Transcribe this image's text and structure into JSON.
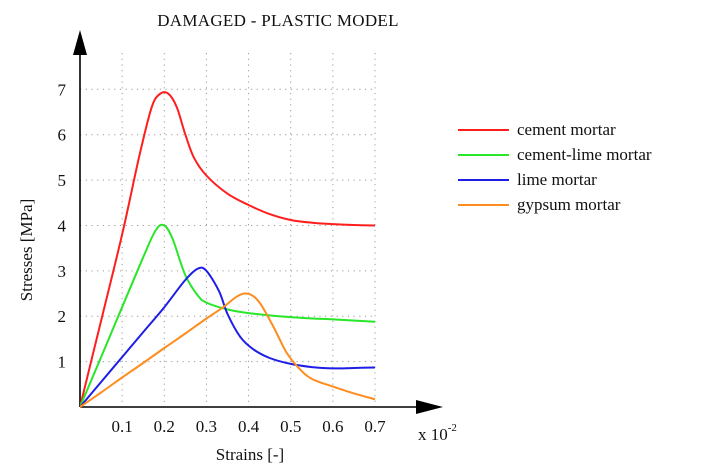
{
  "chart_data": {
    "type": "line",
    "title": "DAMAGED - PLASTIC  MODEL",
    "xlabel": "Strains [-]",
    "ylabel": "Stresses [MPa]",
    "x_multiplier": {
      "base": "x 10",
      "exponent": "-2"
    },
    "xlim": [
      0,
      0.7
    ],
    "ylim": [
      0,
      7.8
    ],
    "x_ticks": [
      "0.1",
      "0.2",
      "0.3",
      "0.4",
      "0.5",
      "0.6",
      "0.7"
    ],
    "y_ticks": [
      "1",
      "2",
      "3",
      "4",
      "5",
      "6",
      "7"
    ],
    "grid": true,
    "legend_position": "right",
    "series": [
      {
        "name": "cement mortar",
        "color": "#ff1e1e",
        "points": [
          [
            0,
            0
          ],
          [
            0.05,
            1.9
          ],
          [
            0.1,
            3.8
          ],
          [
            0.14,
            5.5
          ],
          [
            0.17,
            6.6
          ],
          [
            0.19,
            6.9
          ],
          [
            0.21,
            6.9
          ],
          [
            0.23,
            6.6
          ],
          [
            0.25,
            6.0
          ],
          [
            0.27,
            5.5
          ],
          [
            0.3,
            5.1
          ],
          [
            0.35,
            4.7
          ],
          [
            0.4,
            4.45
          ],
          [
            0.45,
            4.25
          ],
          [
            0.5,
            4.12
          ],
          [
            0.55,
            4.06
          ],
          [
            0.6,
            4.03
          ],
          [
            0.65,
            4.01
          ],
          [
            0.7,
            4.0
          ]
        ]
      },
      {
        "name": "cement-lime mortar",
        "color": "#28e628",
        "points": [
          [
            0,
            0
          ],
          [
            0.05,
            1.1
          ],
          [
            0.1,
            2.2
          ],
          [
            0.15,
            3.3
          ],
          [
            0.18,
            3.9
          ],
          [
            0.2,
            4.0
          ],
          [
            0.22,
            3.7
          ],
          [
            0.25,
            2.9
          ],
          [
            0.28,
            2.45
          ],
          [
            0.3,
            2.3
          ],
          [
            0.35,
            2.15
          ],
          [
            0.4,
            2.07
          ],
          [
            0.5,
            1.98
          ],
          [
            0.6,
            1.93
          ],
          [
            0.7,
            1.88
          ]
        ]
      },
      {
        "name": "lime mortar",
        "color": "#1e1ee6",
        "points": [
          [
            0,
            0
          ],
          [
            0.05,
            0.55
          ],
          [
            0.1,
            1.1
          ],
          [
            0.15,
            1.65
          ],
          [
            0.2,
            2.2
          ],
          [
            0.25,
            2.8
          ],
          [
            0.28,
            3.05
          ],
          [
            0.3,
            3.0
          ],
          [
            0.33,
            2.55
          ],
          [
            0.35,
            2.05
          ],
          [
            0.38,
            1.55
          ],
          [
            0.41,
            1.28
          ],
          [
            0.45,
            1.08
          ],
          [
            0.5,
            0.95
          ],
          [
            0.55,
            0.88
          ],
          [
            0.6,
            0.85
          ],
          [
            0.65,
            0.86
          ],
          [
            0.7,
            0.87
          ]
        ]
      },
      {
        "name": "gypsum mortar",
        "color": "#ff8c1e",
        "points": [
          [
            0,
            0
          ],
          [
            0.05,
            0.32
          ],
          [
            0.1,
            0.65
          ],
          [
            0.15,
            0.97
          ],
          [
            0.2,
            1.3
          ],
          [
            0.25,
            1.62
          ],
          [
            0.3,
            1.95
          ],
          [
            0.34,
            2.2
          ],
          [
            0.37,
            2.42
          ],
          [
            0.39,
            2.5
          ],
          [
            0.41,
            2.45
          ],
          [
            0.43,
            2.25
          ],
          [
            0.46,
            1.75
          ],
          [
            0.49,
            1.2
          ],
          [
            0.52,
            0.85
          ],
          [
            0.55,
            0.62
          ],
          [
            0.6,
            0.45
          ],
          [
            0.65,
            0.3
          ],
          [
            0.7,
            0.17
          ]
        ]
      }
    ]
  }
}
